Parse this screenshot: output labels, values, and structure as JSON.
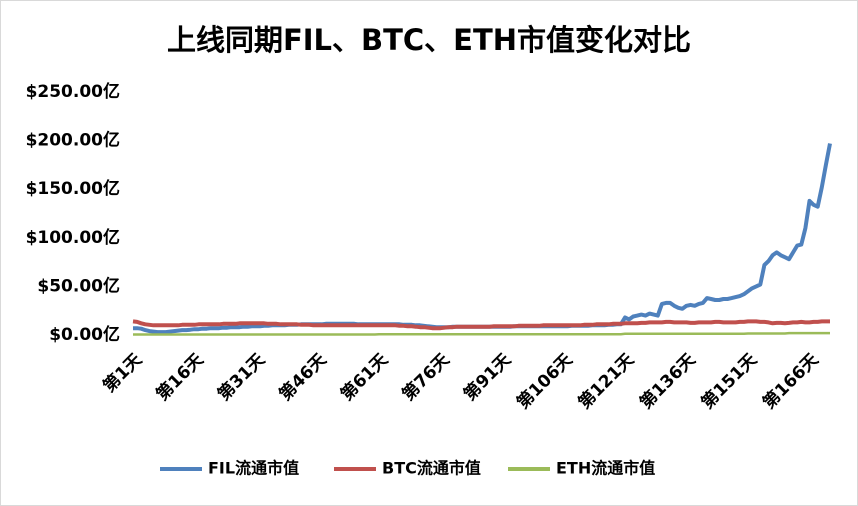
{
  "chart_data": {
    "type": "line",
    "title": "上线同期FIL、BTC、ETH市值变化对比",
    "categories": [
      "第1天",
      null,
      null,
      null,
      null,
      null,
      null,
      null,
      null,
      null,
      null,
      null,
      null,
      null,
      null,
      "第16天",
      null,
      null,
      null,
      null,
      null,
      null,
      null,
      null,
      null,
      null,
      null,
      null,
      null,
      null,
      "第31天",
      null,
      null,
      null,
      null,
      null,
      null,
      null,
      null,
      null,
      null,
      null,
      null,
      null,
      null,
      "第46天",
      null,
      null,
      null,
      null,
      null,
      null,
      null,
      null,
      null,
      null,
      null,
      null,
      null,
      null,
      "第61天",
      null,
      null,
      null,
      null,
      null,
      null,
      null,
      null,
      null,
      null,
      null,
      null,
      null,
      null,
      "第76天",
      null,
      null,
      null,
      null,
      null,
      null,
      null,
      null,
      null,
      null,
      null,
      null,
      null,
      null,
      "第91天",
      null,
      null,
      null,
      null,
      null,
      null,
      null,
      null,
      null,
      null,
      null,
      null,
      null,
      null,
      "第106天",
      null,
      null,
      null,
      null,
      null,
      null,
      null,
      null,
      null,
      null,
      null,
      null,
      null,
      null,
      "第121天",
      null,
      null,
      null,
      null,
      null,
      null,
      null,
      null,
      null,
      null,
      null,
      null,
      null,
      null,
      "第136天",
      null,
      null,
      null,
      null,
      null,
      null,
      null,
      null,
      null,
      null,
      null,
      null,
      null,
      null,
      "第151天",
      null,
      null,
      null,
      null,
      null,
      null,
      null,
      null,
      null,
      null,
      null,
      null,
      null,
      null,
      "第166天",
      null,
      null,
      null,
      null,
      null
    ],
    "series": [
      {
        "name": "FIL流通市值",
        "color": "#4f81bd",
        "values": [
          7,
          7,
          6.5,
          5,
          4,
          3.5,
          3,
          3,
          3,
          3.5,
          4,
          4.5,
          5,
          5,
          5.5,
          6,
          6,
          6.5,
          6.5,
          7,
          7,
          7,
          7.5,
          7.5,
          8,
          8,
          8,
          8.5,
          8.5,
          9,
          9,
          9,
          9.5,
          9.5,
          10,
          10,
          10,
          10,
          10.5,
          10.5,
          10.5,
          11,
          11,
          11,
          11,
          11,
          11,
          11.5,
          11.5,
          11.5,
          11.5,
          11.5,
          11.5,
          11.5,
          11.5,
          11,
          11,
          11,
          11,
          11,
          11,
          11,
          11,
          11,
          11,
          11,
          10.5,
          10.5,
          10.5,
          10,
          10,
          9.5,
          9,
          8.5,
          8,
          8,
          8,
          8,
          8.5,
          8.5,
          8.5,
          8.5,
          8.5,
          8.5,
          8.5,
          8.5,
          8.5,
          8.5,
          8.5,
          8.5,
          8.5,
          8.5,
          8.5,
          9,
          9,
          9,
          9,
          9,
          9,
          9,
          9,
          9,
          9,
          9,
          9,
          9,
          9,
          9.5,
          9.5,
          9.5,
          9.5,
          9.5,
          10,
          10,
          10,
          10,
          10.5,
          10.5,
          11,
          11,
          18,
          16,
          19,
          20,
          21,
          20,
          22,
          21,
          20,
          32,
          33,
          33,
          30,
          28,
          27,
          30,
          31,
          30,
          32,
          33,
          38,
          37,
          36,
          36,
          37,
          37,
          38,
          39,
          40,
          42,
          45,
          48,
          50,
          52,
          72,
          76,
          82,
          85,
          82,
          80,
          78,
          85,
          92,
          93,
          110,
          138,
          134,
          132,
          152,
          175,
          197
        ]
      },
      {
        "name": "BTC流通市值",
        "color": "#c0504d",
        "values": [
          14,
          13.5,
          12,
          11,
          10.5,
          10,
          10,
          10,
          10,
          10,
          10,
          10,
          10.5,
          10.5,
          10.5,
          10.5,
          11,
          11,
          11,
          11,
          11,
          11,
          11.5,
          11.5,
          11.5,
          11.5,
          12,
          12,
          12,
          12,
          12,
          12,
          12,
          11.5,
          11.5,
          11.5,
          11,
          11,
          11,
          11,
          11,
          10.5,
          10.5,
          10.5,
          10,
          10,
          10,
          10,
          10,
          10,
          10,
          10,
          10,
          10,
          10,
          10,
          10,
          10,
          10,
          10,
          10,
          10,
          10,
          10,
          10,
          9.5,
          9.5,
          9,
          9,
          8.5,
          8,
          8,
          7.5,
          7,
          7,
          7,
          7.5,
          8,
          8,
          8.5,
          8.5,
          8.5,
          8.5,
          8.5,
          8.5,
          8.5,
          8.5,
          8.5,
          9,
          9,
          9,
          9,
          9,
          9,
          9.5,
          9.5,
          9.5,
          9.5,
          9.5,
          9.5,
          10,
          10,
          10,
          10,
          10,
          10,
          10,
          10,
          10,
          10,
          10.5,
          10.5,
          10.5,
          11,
          11,
          11,
          11,
          11.5,
          11.5,
          11.5,
          12,
          12,
          12,
          12,
          12.5,
          12.5,
          13,
          13,
          13,
          13,
          13.5,
          13.5,
          13,
          13,
          13,
          13,
          12.5,
          12.5,
          13,
          13,
          13,
          13,
          13.5,
          13.5,
          13,
          13,
          13,
          13,
          13.5,
          13.5,
          14,
          14,
          14,
          13.5,
          13.5,
          13,
          12,
          12.5,
          12.5,
          12,
          12.5,
          13,
          13,
          13.5,
          13,
          13,
          13.5,
          13.5,
          14,
          14,
          14
        ]
      },
      {
        "name": "ETH流通市值",
        "color": "#9bbb59",
        "values": [
          0.5,
          0.5,
          0.5,
          0.5,
          0.5,
          0.5,
          0.5,
          0.5,
          0.5,
          0.5,
          0.5,
          0.5,
          0.5,
          0.5,
          0.5,
          0.5,
          0.5,
          0.5,
          0.5,
          0.5,
          0.5,
          0.5,
          0.5,
          0.5,
          0.5,
          0.5,
          0.5,
          0.5,
          0.5,
          0.5,
          0.5,
          0.5,
          0.5,
          0.5,
          0.5,
          0.5,
          0.5,
          0.5,
          0.5,
          0.5,
          0.5,
          0.5,
          0.5,
          0.5,
          0.5,
          0.5,
          0.5,
          0.5,
          0.5,
          0.5,
          0.5,
          0.5,
          0.5,
          0.5,
          0.5,
          0.5,
          0.5,
          0.5,
          0.5,
          0.5,
          0.8,
          0.8,
          0.8,
          0.8,
          0.8,
          0.8,
          0.8,
          0.8,
          0.8,
          0.8,
          0.8,
          0.8,
          0.8,
          0.8,
          0.8,
          0.8,
          0.8,
          0.8,
          0.8,
          0.8,
          0.8,
          0.8,
          0.8,
          0.8,
          0.8,
          0.8,
          0.8,
          0.8,
          0.8,
          0.8,
          0.8,
          0.8,
          0.8,
          0.8,
          0.8,
          0.8,
          0.8,
          0.8,
          0.8,
          0.8,
          0.8,
          0.8,
          0.8,
          0.8,
          0.8,
          0.8,
          0.8,
          0.8,
          0.8,
          0.8,
          0.8,
          0.8,
          0.8,
          0.8,
          0.8,
          0.8,
          0.8,
          0.8,
          0.8,
          0.8,
          1.2,
          1.2,
          1.2,
          1.2,
          1.2,
          1.2,
          1.2,
          1.2,
          1.2,
          1.2,
          1.2,
          1.2,
          1.2,
          1.2,
          1.2,
          1.2,
          1.2,
          1.2,
          1.2,
          1.2,
          1.2,
          1.2,
          1.2,
          1.2,
          1.2,
          1.2,
          1.2,
          1.2,
          1.2,
          1.2,
          1.5,
          1.5,
          1.5,
          1.5,
          1.5,
          1.5,
          1.5,
          1.5,
          1.5,
          1.5,
          2,
          2,
          2,
          2,
          2,
          2,
          2,
          2,
          2,
          2,
          2
        ]
      }
    ],
    "ylim": [
      0,
      250
    ],
    "yticks": [
      {
        "value": 0,
        "label": "$0.00亿"
      },
      {
        "value": 50,
        "label": "$50.00亿"
      },
      {
        "value": 100,
        "label": "$100.00亿"
      },
      {
        "value": 150,
        "label": "$150.00亿"
      },
      {
        "value": 200,
        "label": "$200.00亿"
      },
      {
        "value": 250,
        "label": "$250.00亿"
      }
    ],
    "grid": false,
    "legend": "bottom"
  }
}
